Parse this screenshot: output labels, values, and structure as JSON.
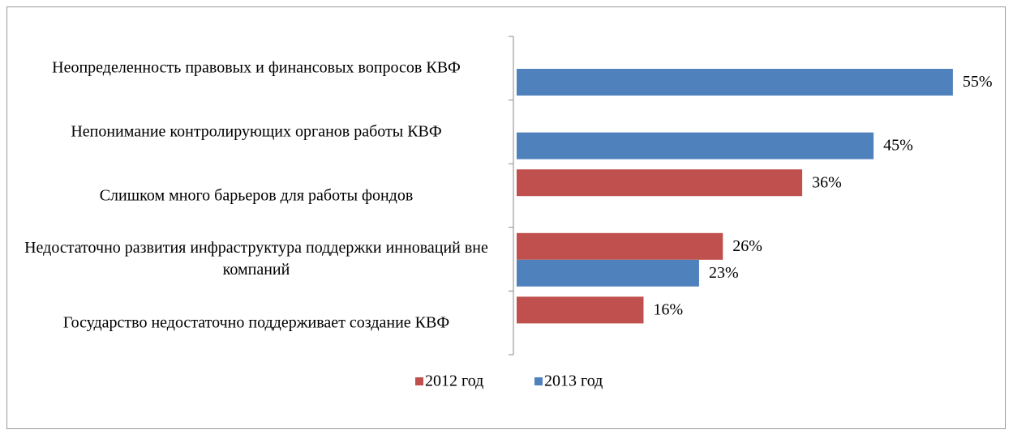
{
  "chart_data": {
    "type": "bar",
    "orientation": "horizontal",
    "categories": [
      "Неопределенность правовых и финансовых вопросов КВФ",
      "Непонимание контролирующих органов работы КВФ",
      "Слишком много барьеров для работы фондов",
      "Недостаточно развития инфраструктура поддержки инноваций вне компаний",
      "Государство недостаточно поддерживает создание КВФ"
    ],
    "series": [
      {
        "name": "2012 год",
        "color": "#c0504d",
        "values": [
          null,
          null,
          36,
          26,
          16
        ],
        "value_labels": [
          null,
          null,
          "36%",
          "26%",
          "16%"
        ]
      },
      {
        "name": "2013 год",
        "color": "#4f81bd",
        "values": [
          55,
          45,
          null,
          23,
          null
        ],
        "value_labels": [
          "55%",
          "45%",
          null,
          "23%",
          null
        ]
      }
    ],
    "legend": "bottom"
  }
}
